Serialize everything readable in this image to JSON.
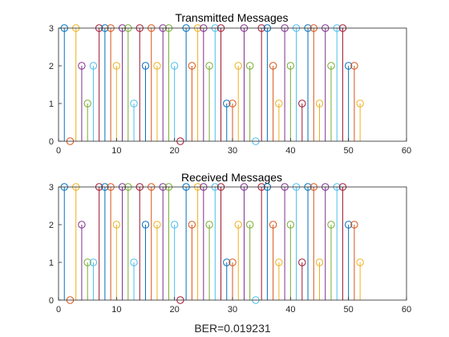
{
  "figure": {
    "xlabel_bottom": "BER=0.019231"
  },
  "chart_data": [
    {
      "type": "stem",
      "title": "Transmitted Messages",
      "xlabel": "",
      "ylabel": "",
      "xlim": [
        0,
        60
      ],
      "ylim": [
        0,
        3
      ],
      "xticks": [
        0,
        10,
        20,
        30,
        40,
        50,
        60
      ],
      "yticks": [
        0,
        1,
        2,
        3
      ],
      "grid": false,
      "x": [
        1,
        2,
        3,
        4,
        5,
        6,
        7,
        8,
        9,
        10,
        11,
        12,
        13,
        14,
        15,
        16,
        17,
        18,
        19,
        20,
        21,
        22,
        23,
        24,
        25,
        26,
        27,
        28,
        29,
        30,
        31,
        32,
        33,
        34,
        35,
        36,
        37,
        38,
        39,
        40,
        41,
        42,
        43,
        44,
        45,
        46,
        47,
        48,
        49,
        50,
        51,
        52
      ],
      "values": [
        3,
        0,
        3,
        2,
        1,
        2,
        3,
        3,
        3,
        2,
        3,
        3,
        1,
        3,
        2,
        3,
        2,
        3,
        3,
        2,
        0,
        3,
        2,
        3,
        3,
        2,
        3,
        3,
        1,
        1,
        2,
        3,
        2,
        0,
        3,
        3,
        2,
        1,
        3,
        2,
        3,
        1,
        3,
        3,
        1,
        3,
        2,
        3,
        3,
        2,
        2,
        1
      ],
      "colors": [
        "#0072BD",
        "#D95319",
        "#EDB120",
        "#7E2F8E",
        "#77AC30",
        "#4DBEEE",
        "#A2142F"
      ]
    },
    {
      "type": "stem",
      "title": "Received Messages",
      "xlabel": "BER=0.019231",
      "ylabel": "",
      "xlim": [
        0,
        60
      ],
      "ylim": [
        0,
        3
      ],
      "xticks": [
        0,
        10,
        20,
        30,
        40,
        50,
        60
      ],
      "yticks": [
        0,
        1,
        2,
        3
      ],
      "grid": false,
      "x": [
        1,
        2,
        3,
        4,
        5,
        6,
        7,
        8,
        9,
        10,
        11,
        12,
        13,
        14,
        15,
        16,
        17,
        18,
        19,
        20,
        21,
        22,
        23,
        24,
        25,
        26,
        27,
        28,
        29,
        30,
        31,
        32,
        33,
        34,
        35,
        36,
        37,
        38,
        39,
        40,
        41,
        42,
        43,
        44,
        45,
        46,
        47,
        48,
        49,
        50,
        51,
        52
      ],
      "values": [
        3,
        0,
        3,
        2,
        1,
        1,
        3,
        3,
        3,
        2,
        3,
        3,
        1,
        3,
        2,
        3,
        2,
        3,
        3,
        2,
        0,
        3,
        2,
        3,
        3,
        2,
        3,
        3,
        1,
        1,
        2,
        3,
        2,
        0,
        3,
        3,
        2,
        1,
        3,
        2,
        3,
        1,
        3,
        3,
        1,
        3,
        2,
        3,
        3,
        2,
        2,
        1
      ],
      "colors": [
        "#0072BD",
        "#D95319",
        "#EDB120",
        "#7E2F8E",
        "#77AC30",
        "#4DBEEE",
        "#A2142F"
      ]
    }
  ]
}
